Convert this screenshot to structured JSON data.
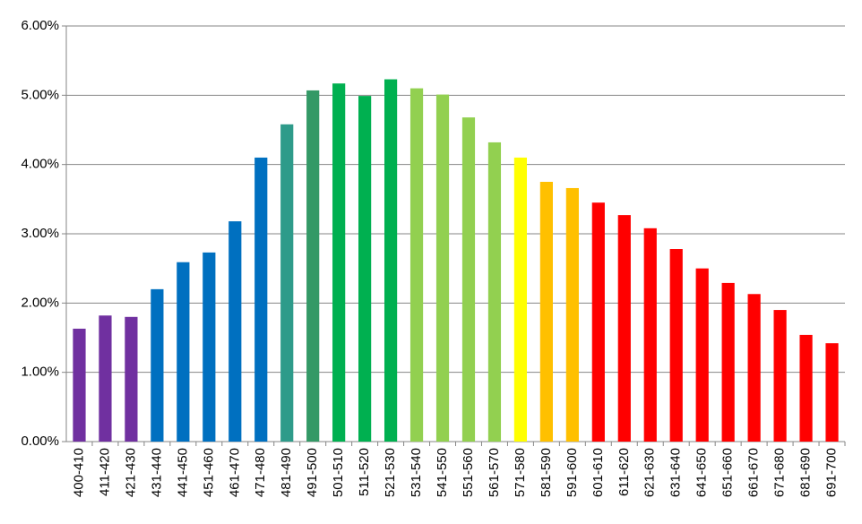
{
  "chart_data": {
    "type": "bar",
    "categories": [
      "400-410",
      "411-420",
      "421-430",
      "431-440",
      "441-450",
      "451-460",
      "461-470",
      "471-480",
      "481-490",
      "491-500",
      "501-510",
      "511-520",
      "521-530",
      "531-540",
      "541-550",
      "551-560",
      "561-570",
      "571-580",
      "581-590",
      "591-600",
      "601-610",
      "611-620",
      "621-630",
      "631-640",
      "641-650",
      "651-660",
      "661-670",
      "671-680",
      "681-690",
      "691-700"
    ],
    "values": [
      1.63,
      1.82,
      1.8,
      2.2,
      2.59,
      2.73,
      3.18,
      4.1,
      4.58,
      5.07,
      5.17,
      4.99,
      5.23,
      5.1,
      5.01,
      4.68,
      4.32,
      4.1,
      3.75,
      3.66,
      3.45,
      3.27,
      3.08,
      2.78,
      2.5,
      2.29,
      2.13,
      1.9,
      1.54,
      1.42
    ],
    "colors": [
      "#7030a0",
      "#7030a0",
      "#7030a0",
      "#0070c0",
      "#0070c0",
      "#0070c0",
      "#0070c0",
      "#0070c0",
      "#2e9b8a",
      "#339966",
      "#00b050",
      "#00b050",
      "#00b050",
      "#92d050",
      "#92d050",
      "#92d050",
      "#92d050",
      "#ffff00",
      "#ffc000",
      "#ffc000",
      "#ff0000",
      "#ff0000",
      "#ff0000",
      "#ff0000",
      "#ff0000",
      "#ff0000",
      "#ff0000",
      "#ff0000",
      "#ff0000",
      "#ff0000"
    ],
    "ylim": [
      0,
      6
    ],
    "yticks": [
      {
        "value": 0,
        "label": "0.00%"
      },
      {
        "value": 1,
        "label": "1.00%"
      },
      {
        "value": 2,
        "label": "2.00%"
      },
      {
        "value": 3,
        "label": "3.00%"
      },
      {
        "value": 4,
        "label": "4.00%"
      },
      {
        "value": 5,
        "label": "5.00%"
      },
      {
        "value": 6,
        "label": "6.00%"
      }
    ],
    "grid": true
  }
}
